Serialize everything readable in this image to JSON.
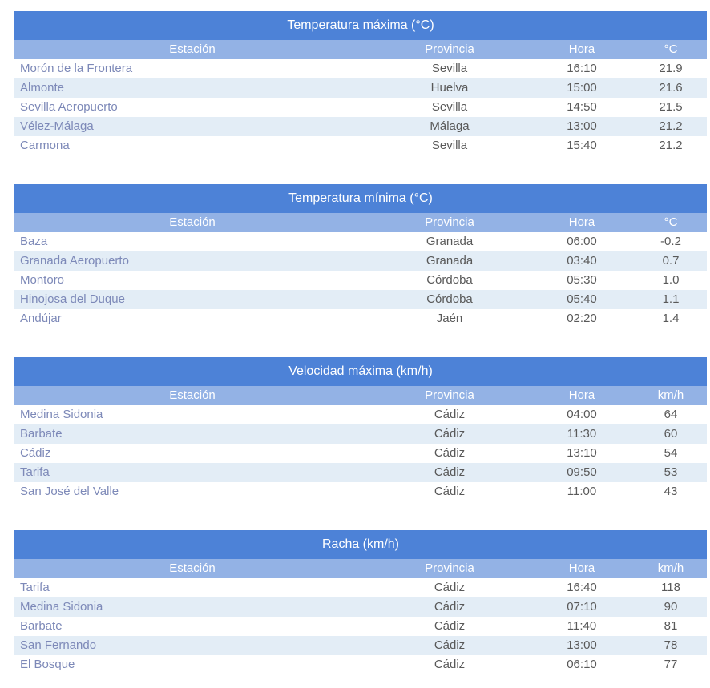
{
  "colors": {
    "title_bg": "#4d82d7",
    "header_bg": "#93b2e5",
    "row_alt_bg": "#e3edf6",
    "station_text": "#7d89b8",
    "data_text": "#595959",
    "header_text": "#ffffff"
  },
  "columns": {
    "estacion": "Estación",
    "provincia": "Provincia",
    "hora": "Hora"
  },
  "tables": [
    {
      "title": "Temperatura máxima (°C)",
      "value_header": "°C",
      "rows": [
        {
          "station": "Morón de la Frontera",
          "province": "Sevilla",
          "hora": "16:10",
          "value": "21.9"
        },
        {
          "station": "Almonte",
          "province": "Huelva",
          "hora": "15:00",
          "value": "21.6"
        },
        {
          "station": "Sevilla Aeropuerto",
          "province": "Sevilla",
          "hora": "14:50",
          "value": "21.5"
        },
        {
          "station": "Vélez-Málaga",
          "province": "Málaga",
          "hora": "13:00",
          "value": "21.2"
        },
        {
          "station": "Carmona",
          "province": "Sevilla",
          "hora": "15:40",
          "value": "21.2"
        }
      ]
    },
    {
      "title": "Temperatura mínima (°C)",
      "value_header": "°C",
      "rows": [
        {
          "station": "Baza",
          "province": "Granada",
          "hora": "06:00",
          "value": "-0.2"
        },
        {
          "station": "Granada Aeropuerto",
          "province": "Granada",
          "hora": "03:40",
          "value": "0.7"
        },
        {
          "station": "Montoro",
          "province": "Córdoba",
          "hora": "05:30",
          "value": "1.0"
        },
        {
          "station": "Hinojosa del Duque",
          "province": "Córdoba",
          "hora": "05:40",
          "value": "1.1"
        },
        {
          "station": "Andújar",
          "province": "Jaén",
          "hora": "02:20",
          "value": "1.4"
        }
      ]
    },
    {
      "title": "Velocidad máxima (km/h)",
      "value_header": "km/h",
      "rows": [
        {
          "station": "Medina Sidonia",
          "province": "Cádiz",
          "hora": "04:00",
          "value": "64"
        },
        {
          "station": "Barbate",
          "province": "Cádiz",
          "hora": "11:30",
          "value": "60"
        },
        {
          "station": "Cádiz",
          "province": "Cádiz",
          "hora": "13:10",
          "value": "54"
        },
        {
          "station": "Tarifa",
          "province": "Cádiz",
          "hora": "09:50",
          "value": "53"
        },
        {
          "station": "San José del Valle",
          "province": "Cádiz",
          "hora": "11:00",
          "value": "43"
        }
      ]
    },
    {
      "title": "Racha (km/h)",
      "value_header": "km/h",
      "rows": [
        {
          "station": "Tarifa",
          "province": "Cádiz",
          "hora": "16:40",
          "value": "118"
        },
        {
          "station": "Medina Sidonia",
          "province": "Cádiz",
          "hora": "07:10",
          "value": "90"
        },
        {
          "station": "Barbate",
          "province": "Cádiz",
          "hora": "11:40",
          "value": "81"
        },
        {
          "station": "San Fernando",
          "province": "Cádiz",
          "hora": "13:00",
          "value": "78"
        },
        {
          "station": "El Bosque",
          "province": "Cádiz",
          "hora": "06:10",
          "value": "77"
        }
      ]
    }
  ]
}
